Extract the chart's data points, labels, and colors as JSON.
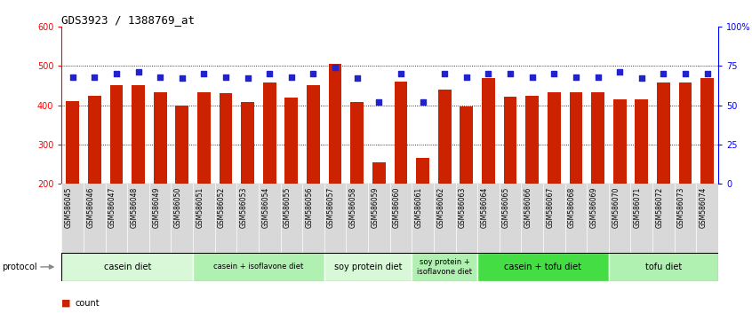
{
  "title": "GDS3923 / 1388769_at",
  "samples": [
    "GSM586045",
    "GSM586046",
    "GSM586047",
    "GSM586048",
    "GSM586049",
    "GSM586050",
    "GSM586051",
    "GSM586052",
    "GSM586053",
    "GSM586054",
    "GSM586055",
    "GSM586056",
    "GSM586057",
    "GSM586058",
    "GSM586059",
    "GSM586060",
    "GSM586061",
    "GSM586062",
    "GSM586063",
    "GSM586064",
    "GSM586065",
    "GSM586066",
    "GSM586067",
    "GSM586068",
    "GSM586069",
    "GSM586070",
    "GSM586071",
    "GSM586072",
    "GSM586073",
    "GSM586074"
  ],
  "counts": [
    410,
    425,
    452,
    452,
    432,
    398,
    432,
    430,
    407,
    458,
    420,
    452,
    505,
    408,
    255,
    460,
    265,
    440,
    397,
    468,
    422,
    425,
    433,
    433,
    432,
    415,
    415,
    458,
    458,
    468
  ],
  "percentiles": [
    68,
    68,
    70,
    71,
    68,
    67,
    70,
    68,
    67,
    70,
    68,
    70,
    74,
    67,
    52,
    70,
    52,
    70,
    68,
    70,
    70,
    68,
    70,
    68,
    68,
    71,
    67,
    70,
    70,
    70
  ],
  "groups": [
    {
      "label": "casein diet",
      "start": 0,
      "end": 5,
      "color": "#d8f8d8"
    },
    {
      "label": "casein + isoflavone diet",
      "start": 6,
      "end": 11,
      "color": "#b0f0b0"
    },
    {
      "label": "soy protein diet",
      "start": 12,
      "end": 15,
      "color": "#d8f8d8"
    },
    {
      "label": "soy protein +\nisoflavone diet",
      "start": 16,
      "end": 18,
      "color": "#b0f0b0"
    },
    {
      "label": "casein + tofu diet",
      "start": 19,
      "end": 24,
      "color": "#44dd44"
    },
    {
      "label": "tofu diet",
      "start": 25,
      "end": 29,
      "color": "#b0f0b0"
    }
  ],
  "ylim_left": [
    200,
    600
  ],
  "ylim_right": [
    0,
    100
  ],
  "yticks_left": [
    200,
    300,
    400,
    500,
    600
  ],
  "yticks_right": [
    0,
    25,
    50,
    75,
    100
  ],
  "yticks_right_labels": [
    "0",
    "25",
    "50",
    "75",
    "100%"
  ],
  "bar_color": "#cc2200",
  "dot_color": "#2222cc",
  "background_color": "#ffffff",
  "bar_bottom": 200,
  "grid_lines": [
    300,
    400,
    500
  ],
  "xtick_bg_color": "#d8d8d8",
  "protocol_arrow_color": "#888888"
}
